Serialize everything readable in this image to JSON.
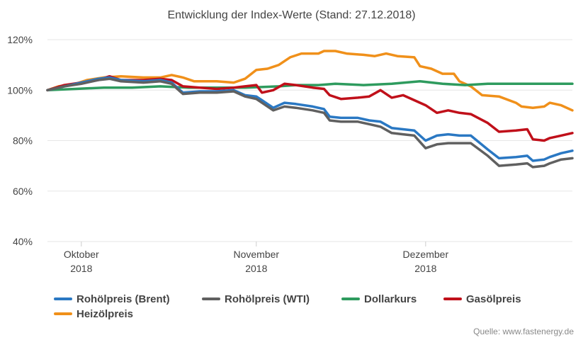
{
  "chart_data": {
    "type": "line",
    "title": "Entwicklung der Index-Werte (Stand: 27.12.2018)",
    "xlabel": "",
    "ylabel": "",
    "xlim": [
      "2018-09-25",
      "2018-12-27"
    ],
    "ylim": [
      40,
      120
    ],
    "grid": "horizontal",
    "legend_position": "bottom",
    "y_ticks": [
      {
        "value": 40,
        "label": "40%"
      },
      {
        "value": 60,
        "label": "60%"
      },
      {
        "value": 80,
        "label": "80%"
      },
      {
        "value": 100,
        "label": "100%"
      },
      {
        "value": 120,
        "label": "120%"
      }
    ],
    "x_ticks": [
      {
        "date": "2018-10-01",
        "month": "Oktober",
        "year": "2018"
      },
      {
        "date": "2018-11-01",
        "month": "November",
        "year": "2018"
      },
      {
        "date": "2018-12-01",
        "month": "Dezember",
        "year": "2018"
      }
    ],
    "series": [
      {
        "name": "Heizölpreis",
        "color": "#f0901a",
        "points": [
          [
            "2018-09-25",
            100
          ],
          [
            "2018-09-27",
            101.5
          ],
          [
            "2018-09-30",
            102.5
          ],
          [
            "2018-10-02",
            104
          ],
          [
            "2018-10-05",
            105
          ],
          [
            "2018-10-08",
            105.5
          ],
          [
            "2018-10-12",
            105
          ],
          [
            "2018-10-15",
            105
          ],
          [
            "2018-10-17",
            106
          ],
          [
            "2018-10-19",
            105
          ],
          [
            "2018-10-21",
            103.5
          ],
          [
            "2018-10-25",
            103.5
          ],
          [
            "2018-10-28",
            103
          ],
          [
            "2018-10-30",
            104.5
          ],
          [
            "2018-11-01",
            108
          ],
          [
            "2018-11-03",
            108.5
          ],
          [
            "2018-11-05",
            110
          ],
          [
            "2018-11-07",
            113
          ],
          [
            "2018-11-09",
            114.5
          ],
          [
            "2018-11-12",
            114.5
          ],
          [
            "2018-11-13",
            115.5
          ],
          [
            "2018-11-15",
            115.5
          ],
          [
            "2018-11-17",
            114.5
          ],
          [
            "2018-11-20",
            114
          ],
          [
            "2018-11-22",
            113.5
          ],
          [
            "2018-11-24",
            114.5
          ],
          [
            "2018-11-26",
            113.5
          ],
          [
            "2018-11-29",
            113
          ],
          [
            "2018-11-30",
            109.5
          ],
          [
            "2018-12-02",
            108.5
          ],
          [
            "2018-12-04",
            106.5
          ],
          [
            "2018-12-06",
            106.5
          ],
          [
            "2018-12-07",
            103.5
          ],
          [
            "2018-12-09",
            101.5
          ],
          [
            "2018-12-11",
            98
          ],
          [
            "2018-12-14",
            97.5
          ],
          [
            "2018-12-17",
            95
          ],
          [
            "2018-12-18",
            93.5
          ],
          [
            "2018-12-20",
            93
          ],
          [
            "2018-12-22",
            93.5
          ],
          [
            "2018-12-23",
            95
          ],
          [
            "2018-12-25",
            94
          ],
          [
            "2018-12-27",
            92
          ]
        ]
      },
      {
        "name": "Dollarkurs",
        "color": "#2e9b5e",
        "points": [
          [
            "2018-09-25",
            100
          ],
          [
            "2018-09-30",
            100.5
          ],
          [
            "2018-10-05",
            101
          ],
          [
            "2018-10-10",
            101
          ],
          [
            "2018-10-15",
            101.5
          ],
          [
            "2018-10-20",
            101
          ],
          [
            "2018-10-25",
            101
          ],
          [
            "2018-10-30",
            101
          ],
          [
            "2018-11-05",
            101.5
          ],
          [
            "2018-11-08",
            102
          ],
          [
            "2018-11-12",
            102
          ],
          [
            "2018-11-15",
            102.5
          ],
          [
            "2018-11-20",
            102
          ],
          [
            "2018-11-25",
            102.5
          ],
          [
            "2018-11-30",
            103.5
          ],
          [
            "2018-12-04",
            102.5
          ],
          [
            "2018-12-08",
            102
          ],
          [
            "2018-12-12",
            102.5
          ],
          [
            "2018-12-16",
            102.5
          ],
          [
            "2018-12-20",
            102.5
          ],
          [
            "2018-12-23",
            102.5
          ],
          [
            "2018-12-25",
            102.5
          ],
          [
            "2018-12-27",
            102.5
          ]
        ]
      },
      {
        "name": "Gasölpreis",
        "color": "#c0101a",
        "points": [
          [
            "2018-09-25",
            100
          ],
          [
            "2018-09-28",
            102
          ],
          [
            "2018-10-01",
            103
          ],
          [
            "2018-10-04",
            104
          ],
          [
            "2018-10-06",
            105.5
          ],
          [
            "2018-10-08",
            104
          ],
          [
            "2018-10-12",
            104
          ],
          [
            "2018-10-15",
            104.5
          ],
          [
            "2018-10-17",
            104
          ],
          [
            "2018-10-19",
            101.5
          ],
          [
            "2018-10-22",
            101
          ],
          [
            "2018-10-25",
            100.5
          ],
          [
            "2018-10-28",
            101
          ],
          [
            "2018-10-30",
            101.5
          ],
          [
            "2018-11-01",
            102
          ],
          [
            "2018-11-02",
            99
          ],
          [
            "2018-11-04",
            100
          ],
          [
            "2018-11-06",
            102.5
          ],
          [
            "2018-11-08",
            102
          ],
          [
            "2018-11-11",
            101
          ],
          [
            "2018-11-13",
            100.5
          ],
          [
            "2018-11-14",
            98
          ],
          [
            "2018-11-16",
            96.5
          ],
          [
            "2018-11-19",
            97
          ],
          [
            "2018-11-21",
            97.5
          ],
          [
            "2018-11-23",
            100
          ],
          [
            "2018-11-25",
            97
          ],
          [
            "2018-11-27",
            98
          ],
          [
            "2018-11-29",
            96
          ],
          [
            "2018-12-01",
            94
          ],
          [
            "2018-12-03",
            91
          ],
          [
            "2018-12-05",
            92
          ],
          [
            "2018-12-07",
            91
          ],
          [
            "2018-12-09",
            90.5
          ],
          [
            "2018-12-12",
            87
          ],
          [
            "2018-12-14",
            83.5
          ],
          [
            "2018-12-17",
            84
          ],
          [
            "2018-12-19",
            84.5
          ],
          [
            "2018-12-20",
            80.5
          ],
          [
            "2018-12-22",
            80
          ],
          [
            "2018-12-23",
            81
          ],
          [
            "2018-12-25",
            82
          ],
          [
            "2018-12-27",
            83
          ]
        ]
      },
      {
        "name": "Rohölpreis (Brent)",
        "color": "#2a78c3",
        "points": [
          [
            "2018-09-25",
            100
          ],
          [
            "2018-09-28",
            101.5
          ],
          [
            "2018-10-01",
            103
          ],
          [
            "2018-10-04",
            104.5
          ],
          [
            "2018-10-06",
            105
          ],
          [
            "2018-10-08",
            104
          ],
          [
            "2018-10-12",
            103.5
          ],
          [
            "2018-10-15",
            104
          ],
          [
            "2018-10-17",
            103
          ],
          [
            "2018-10-19",
            99
          ],
          [
            "2018-10-22",
            99.5
          ],
          [
            "2018-10-25",
            99.5
          ],
          [
            "2018-10-28",
            100
          ],
          [
            "2018-10-30",
            98
          ],
          [
            "2018-11-01",
            97.5
          ],
          [
            "2018-11-02",
            96
          ],
          [
            "2018-11-04",
            93
          ],
          [
            "2018-11-06",
            95
          ],
          [
            "2018-11-08",
            94.5
          ],
          [
            "2018-11-11",
            93.5
          ],
          [
            "2018-11-13",
            92.5
          ],
          [
            "2018-11-14",
            89.5
          ],
          [
            "2018-11-16",
            89
          ],
          [
            "2018-11-19",
            89
          ],
          [
            "2018-11-21",
            88
          ],
          [
            "2018-11-23",
            87.5
          ],
          [
            "2018-11-25",
            85
          ],
          [
            "2018-11-27",
            84.5
          ],
          [
            "2018-11-29",
            84
          ],
          [
            "2018-12-01",
            80
          ],
          [
            "2018-12-03",
            82
          ],
          [
            "2018-12-05",
            82.5
          ],
          [
            "2018-12-07",
            82
          ],
          [
            "2018-12-09",
            82
          ],
          [
            "2018-12-12",
            76.5
          ],
          [
            "2018-12-14",
            73
          ],
          [
            "2018-12-17",
            73.5
          ],
          [
            "2018-12-19",
            74
          ],
          [
            "2018-12-20",
            72
          ],
          [
            "2018-12-22",
            72.5
          ],
          [
            "2018-12-23",
            73.5
          ],
          [
            "2018-12-25",
            75
          ],
          [
            "2018-12-27",
            76
          ]
        ]
      },
      {
        "name": "Rohölpreis (WTI)",
        "color": "#606060",
        "points": [
          [
            "2018-09-25",
            100
          ],
          [
            "2018-09-28",
            101.5
          ],
          [
            "2018-10-01",
            102.5
          ],
          [
            "2018-10-04",
            104
          ],
          [
            "2018-10-06",
            104.5
          ],
          [
            "2018-10-08",
            103.5
          ],
          [
            "2018-10-12",
            103
          ],
          [
            "2018-10-15",
            103.5
          ],
          [
            "2018-10-17",
            102.5
          ],
          [
            "2018-10-19",
            98.5
          ],
          [
            "2018-10-22",
            99
          ],
          [
            "2018-10-25",
            99
          ],
          [
            "2018-10-28",
            99.5
          ],
          [
            "2018-10-30",
            97.5
          ],
          [
            "2018-11-01",
            96.5
          ],
          [
            "2018-11-02",
            95
          ],
          [
            "2018-11-04",
            92
          ],
          [
            "2018-11-06",
            93.5
          ],
          [
            "2018-11-08",
            93
          ],
          [
            "2018-11-11",
            92
          ],
          [
            "2018-11-13",
            91
          ],
          [
            "2018-11-14",
            88
          ],
          [
            "2018-11-16",
            87.5
          ],
          [
            "2018-11-19",
            87.5
          ],
          [
            "2018-11-21",
            86.5
          ],
          [
            "2018-11-23",
            85.5
          ],
          [
            "2018-11-25",
            83
          ],
          [
            "2018-11-27",
            82.5
          ],
          [
            "2018-11-29",
            82
          ],
          [
            "2018-12-01",
            77
          ],
          [
            "2018-12-03",
            78.5
          ],
          [
            "2018-12-05",
            79
          ],
          [
            "2018-12-07",
            79
          ],
          [
            "2018-12-09",
            79
          ],
          [
            "2018-12-12",
            74
          ],
          [
            "2018-12-14",
            70
          ],
          [
            "2018-12-17",
            70.5
          ],
          [
            "2018-12-19",
            71
          ],
          [
            "2018-12-20",
            69.5
          ],
          [
            "2018-12-22",
            70
          ],
          [
            "2018-12-23",
            71
          ],
          [
            "2018-12-25",
            72.5
          ],
          [
            "2018-12-27",
            73
          ]
        ]
      }
    ],
    "legend_order": [
      "Rohölpreis (Brent)",
      "Rohölpreis (WTI)",
      "Dollarkurs",
      "Gasölpreis",
      "Heizölpreis"
    ]
  },
  "source_note": "Quelle: www.fastenergy.de"
}
